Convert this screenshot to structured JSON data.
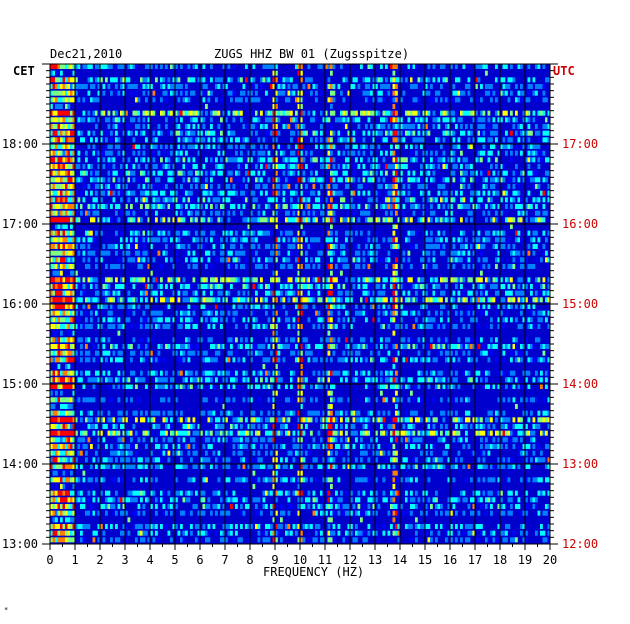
{
  "header": {
    "date": "Dec21,2010",
    "station_title": "ZUGS HHZ BW 01 (Zugsspitze)"
  },
  "axis_labels": {
    "left_timezone": "CET",
    "right_timezone": "UTC",
    "xlabel": "FREQUENCY (HZ)"
  },
  "corner_mark": "*",
  "colors": {
    "background": "#0000cc",
    "gridline": "#000000",
    "utc_text": "#cc0000",
    "colormap": [
      "#00008f",
      "#0000ff",
      "#0080ff",
      "#00ffff",
      "#80ff80",
      "#ffff00",
      "#ff8000",
      "#ff0000"
    ]
  },
  "chart_data": {
    "type": "heatmap",
    "xlim": [
      0,
      20
    ],
    "x_ticks": [
      0,
      1,
      2,
      3,
      4,
      5,
      6,
      7,
      8,
      9,
      10,
      11,
      12,
      13,
      14,
      15,
      16,
      17,
      18,
      19,
      20
    ],
    "xlabel": "FREQUENCY (HZ)",
    "y_left_ticks": [
      "13:00",
      "14:00",
      "15:00",
      "16:00",
      "17:00",
      "18:00"
    ],
    "y_right_ticks": [
      "12:00",
      "13:00",
      "14:00",
      "15:00",
      "16:00",
      "17:00"
    ],
    "time_range_cet": [
      "13:00",
      "19:00"
    ],
    "rows_per_hour": 12,
    "grid": true,
    "persistent_lines_hz": [
      9,
      10,
      11.2,
      13.8
    ],
    "low_frequency_energy_hz": [
      0,
      1
    ]
  }
}
